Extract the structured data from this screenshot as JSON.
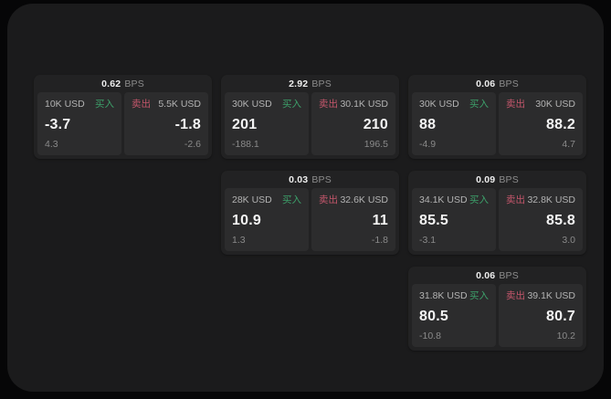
{
  "labels": {
    "bps_unit": "BPS",
    "buy": "买入",
    "sell": "卖出"
  },
  "colors": {
    "page_background": "#060607",
    "panel_background": "#1b1b1c",
    "card_background": "#222223",
    "subcard_background": "#2c2c2d",
    "buy_green": "#3da06a",
    "sell_red": "#c4566b",
    "price_white": "#f4f4f4",
    "muted_gray": "#8a8a8a"
  },
  "cards": [
    {
      "bps": "0.62",
      "col": 1,
      "row": 1,
      "buy": {
        "amount": "10K USD",
        "price": "-3.7",
        "delta": "4.3"
      },
      "sell": {
        "amount": "5.5K USD",
        "price": "-1.8",
        "delta": "-2.6"
      }
    },
    {
      "bps": "2.92",
      "col": 2,
      "row": 1,
      "buy": {
        "amount": "30K USD",
        "price": "201",
        "delta": "-188.1"
      },
      "sell": {
        "amount": "30.1K USD",
        "price": "210",
        "delta": "196.5"
      }
    },
    {
      "bps": "0.03",
      "col": 2,
      "row": 2,
      "buy": {
        "amount": "28K USD",
        "price": "10.9",
        "delta": "1.3"
      },
      "sell": {
        "amount": "32.6K USD",
        "price": "11",
        "delta": "-1.8"
      }
    },
    {
      "bps": "0.06",
      "col": 3,
      "row": 1,
      "buy": {
        "amount": "30K USD",
        "price": "88",
        "delta": "-4.9"
      },
      "sell": {
        "amount": "30K USD",
        "price": "88.2",
        "delta": "4.7"
      }
    },
    {
      "bps": "0.09",
      "col": 3,
      "row": 2,
      "buy": {
        "amount": "34.1K USD",
        "price": "85.5",
        "delta": "-3.1"
      },
      "sell": {
        "amount": "32.8K USD",
        "price": "85.8",
        "delta": "3.0"
      }
    },
    {
      "bps": "0.06",
      "col": 3,
      "row": 3,
      "buy": {
        "amount": "31.8K USD",
        "price": "80.5",
        "delta": "-10.8"
      },
      "sell": {
        "amount": "39.1K USD",
        "price": "80.7",
        "delta": "10.2"
      }
    }
  ]
}
